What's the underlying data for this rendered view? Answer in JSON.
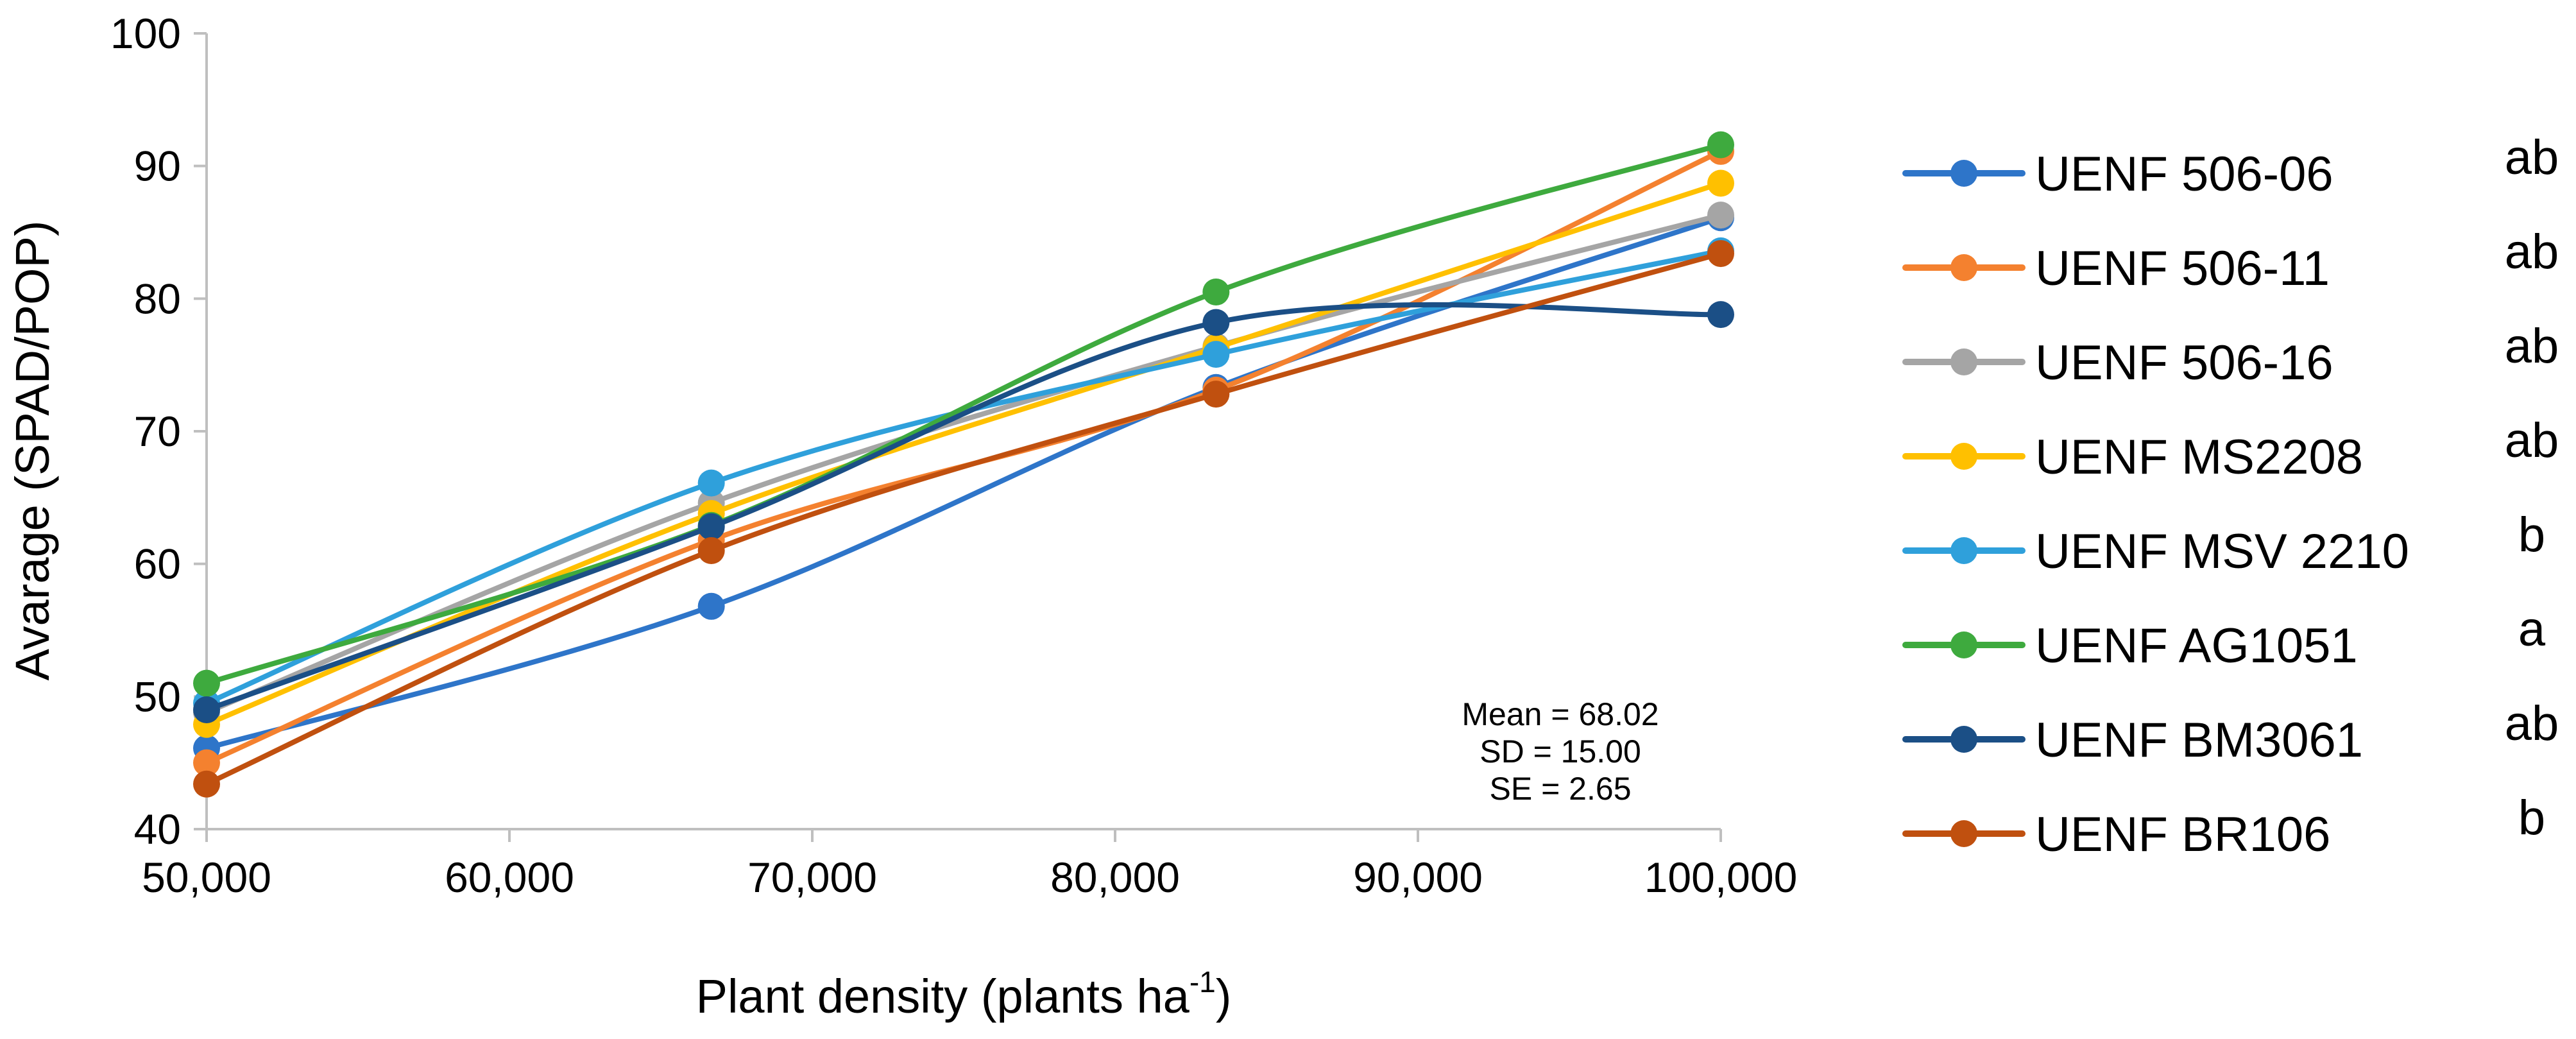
{
  "chart_data": {
    "type": "line",
    "title": "",
    "xlabel": "Plant density (plants ha",
    "xlabel_sup": "-1",
    "xlabel_suffix": ")",
    "ylabel": "Avarage (SPAD/POP)",
    "x": [
      50000,
      66667,
      83333,
      100000
    ],
    "xlim": [
      50000,
      100000
    ],
    "ylim": [
      40,
      100
    ],
    "xticks": [
      50000,
      60000,
      70000,
      80000,
      90000,
      100000
    ],
    "xtick_labels": [
      "50,000",
      "60,000",
      "70,000",
      "80,000",
      "90,000",
      "100,000"
    ],
    "yticks": [
      40,
      50,
      60,
      70,
      80,
      90,
      100
    ],
    "ytick_labels": [
      "40",
      "50",
      "60",
      "70",
      "80",
      "90",
      "100"
    ],
    "grid": false,
    "legend_position": "right",
    "series": [
      {
        "name": "UENF 506-06",
        "group": "ab",
        "color": "#2E75C9",
        "values": [
          46.1,
          56.8,
          73.3,
          86.1
        ]
      },
      {
        "name": "UENF 506-11",
        "group": "ab",
        "color": "#F4812F",
        "values": [
          45.0,
          61.8,
          73.1,
          91.1
        ]
      },
      {
        "name": "UENF 506-16",
        "group": "ab",
        "color": "#A5A5A5",
        "values": [
          48.8,
          64.6,
          76.4,
          86.3
        ]
      },
      {
        "name": "UENF MS2208",
        "group": "ab",
        "color": "#FFC000",
        "values": [
          47.9,
          63.8,
          76.3,
          88.7
        ]
      },
      {
        "name": "UENF MSV 2210",
        "group": "b",
        "color": "#2FA0DB",
        "values": [
          49.5,
          66.1,
          75.8,
          83.6
        ]
      },
      {
        "name": "UENF AG1051",
        "group": "a",
        "color": "#3EAA3E",
        "values": [
          51.0,
          62.9,
          80.5,
          91.6
        ]
      },
      {
        "name": "UENF BM3061",
        "group": "ab",
        "color": "#1B4F86",
        "values": [
          49.0,
          62.8,
          78.2,
          78.8
        ]
      },
      {
        "name": "UENF BR106",
        "group": "b",
        "color": "#C0500F",
        "values": [
          43.4,
          61.0,
          72.8,
          83.4
        ]
      }
    ],
    "annotations": [
      "Mean  = 68.02",
      "SD = 15.00",
      "SE = 2.65"
    ]
  }
}
